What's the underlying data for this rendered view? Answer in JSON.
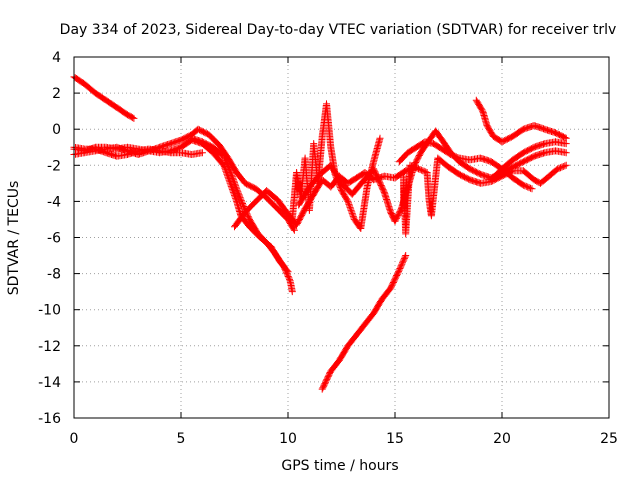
{
  "chart_data": {
    "type": "scatter",
    "title": "Day 334 of 2023, Sidereal Day-to-day VTEC variation (SDTVAR) for receiver trlv",
    "xlabel": "GPS time / hours",
    "ylabel": "SDTVAR / TECUs",
    "xlim": [
      0,
      25
    ],
    "ylim": [
      -16,
      4
    ],
    "xticks": [
      0,
      5,
      10,
      15,
      20,
      25
    ],
    "yticks": [
      4,
      2,
      0,
      -2,
      -4,
      -6,
      -8,
      -10,
      -12,
      -14,
      -16
    ],
    "xtick_labels": [
      "0",
      "5",
      "10",
      "15",
      "20",
      "25"
    ],
    "ytick_labels": [
      "4",
      "2",
      "0",
      "-2",
      "-4",
      "-6",
      "-8",
      "-10",
      "-12",
      "-14",
      "-16"
    ],
    "grid": true,
    "marker": "+",
    "color": "#ff0000",
    "series": [
      {
        "name": "arc-a",
        "points": [
          [
            0,
            2.9
          ],
          [
            0.5,
            2.5
          ],
          [
            1,
            2.0
          ],
          [
            1.5,
            1.6
          ],
          [
            2,
            1.2
          ],
          [
            2.5,
            0.8
          ],
          [
            2.8,
            0.6
          ]
        ]
      },
      {
        "name": "arc-b",
        "points": [
          [
            0,
            -1.0
          ],
          [
            0.5,
            -1.1
          ],
          [
            1,
            -1.1
          ],
          [
            1.5,
            -1.3
          ],
          [
            2,
            -1.5
          ],
          [
            2.5,
            -1.4
          ],
          [
            3,
            -1.2
          ],
          [
            3.5,
            -1.1
          ],
          [
            4,
            -1.2
          ],
          [
            4.5,
            -1.3
          ],
          [
            5,
            -1.3
          ],
          [
            5.5,
            -1.4
          ],
          [
            6,
            -1.3
          ]
        ]
      },
      {
        "name": "arc-c",
        "points": [
          [
            0,
            -1.1
          ],
          [
            0.5,
            -1.2
          ],
          [
            1,
            -1.0
          ],
          [
            1.5,
            -1.0
          ],
          [
            2,
            -1.1
          ],
          [
            2.5,
            -1.0
          ],
          [
            3,
            -1.1
          ],
          [
            3.5,
            -1.2
          ],
          [
            4,
            -1.0
          ],
          [
            4.5,
            -0.8
          ],
          [
            5,
            -0.6
          ],
          [
            5.5,
            -0.3
          ],
          [
            5.8,
            0.0
          ],
          [
            6.3,
            -0.3
          ],
          [
            6.8,
            -0.9
          ],
          [
            7.2,
            -1.6
          ],
          [
            7.6,
            -2.4
          ],
          [
            8,
            -3.0
          ],
          [
            8.5,
            -3.3
          ],
          [
            9,
            -3.8
          ],
          [
            9.5,
            -4.4
          ],
          [
            10,
            -5.0
          ],
          [
            10.3,
            -5.6
          ]
        ]
      },
      {
        "name": "arc-d",
        "points": [
          [
            0,
            -1.4
          ],
          [
            0.5,
            -1.3
          ],
          [
            1,
            -1.2
          ],
          [
            1.5,
            -1.1
          ],
          [
            2,
            -1.0
          ],
          [
            2.5,
            -1.2
          ],
          [
            3,
            -1.4
          ],
          [
            3.5,
            -1.2
          ],
          [
            4,
            -1.3
          ],
          [
            4.5,
            -1.2
          ],
          [
            5,
            -1.0
          ],
          [
            5.5,
            -0.6
          ],
          [
            6,
            -0.8
          ],
          [
            6.5,
            -1.3
          ],
          [
            7,
            -2.0
          ],
          [
            7.3,
            -3.0
          ],
          [
            7.6,
            -4.0
          ],
          [
            7.8,
            -4.8
          ],
          [
            8.2,
            -5.4
          ],
          [
            8.7,
            -6.0
          ],
          [
            9.2,
            -6.5
          ],
          [
            9.6,
            -7.3
          ],
          [
            10,
            -7.9
          ]
        ]
      },
      {
        "name": "arc-e",
        "points": [
          [
            5.5,
            -0.5
          ],
          [
            6,
            -0.7
          ],
          [
            6.5,
            -1.0
          ],
          [
            7,
            -1.5
          ],
          [
            7.3,
            -2.3
          ],
          [
            7.6,
            -3.3
          ],
          [
            7.9,
            -4.2
          ],
          [
            8.2,
            -5.0
          ],
          [
            8.6,
            -5.8
          ],
          [
            9,
            -6.3
          ],
          [
            9.4,
            -6.9
          ],
          [
            9.8,
            -7.6
          ],
          [
            10.1,
            -8.4
          ],
          [
            10.2,
            -9.0
          ]
        ]
      },
      {
        "name": "arc-f",
        "points": [
          [
            7.5,
            -5.4
          ],
          [
            8,
            -4.6
          ],
          [
            8.5,
            -4.0
          ],
          [
            9,
            -3.4
          ],
          [
            9.5,
            -3.9
          ],
          [
            10,
            -4.7
          ],
          [
            10.4,
            -5.3
          ],
          [
            10.8,
            -4.4
          ],
          [
            11.2,
            -3.6
          ],
          [
            11.6,
            -2.8
          ],
          [
            12,
            -3.2
          ],
          [
            12.4,
            -2.6
          ],
          [
            12.8,
            -3.0
          ],
          [
            13.2,
            -2.7
          ],
          [
            13.6,
            -2.4
          ],
          [
            14,
            -2.8
          ],
          [
            14.5,
            -2.6
          ],
          [
            15,
            -2.7
          ],
          [
            15.5,
            -2.3
          ],
          [
            16,
            -2.1
          ]
        ]
      },
      {
        "name": "arc-g",
        "points": [
          [
            10.2,
            -5.0
          ],
          [
            10.4,
            -2.4
          ],
          [
            10.6,
            -3.8
          ],
          [
            10.8,
            -1.6
          ],
          [
            11,
            -4.5
          ],
          [
            11.2,
            -0.8
          ],
          [
            11.4,
            -3.0
          ],
          [
            11.6,
            -0.4
          ],
          [
            11.8,
            1.4
          ],
          [
            12,
            -1.0
          ],
          [
            12.2,
            -2.5
          ],
          [
            12.5,
            -3.4
          ],
          [
            12.8,
            -4.0
          ],
          [
            13.1,
            -5.0
          ],
          [
            13.4,
            -5.5
          ],
          [
            13.7,
            -3.2
          ],
          [
            14,
            -1.8
          ],
          [
            14.3,
            -0.5
          ]
        ]
      },
      {
        "name": "arc-h",
        "points": [
          [
            10.5,
            -4.2
          ],
          [
            11,
            -3.2
          ],
          [
            11.5,
            -2.5
          ],
          [
            12,
            -2.0
          ],
          [
            12.5,
            -3.0
          ],
          [
            13,
            -3.6
          ],
          [
            13.5,
            -2.9
          ],
          [
            14,
            -2.2
          ],
          [
            14.5,
            -3.5
          ],
          [
            14.8,
            -4.6
          ],
          [
            15,
            -5.1
          ],
          [
            15.3,
            -4.4
          ],
          [
            15.6,
            -3.2
          ],
          [
            15.9,
            -2.0
          ],
          [
            16.2,
            -1.3
          ],
          [
            16.6,
            -0.6
          ],
          [
            16.9,
            -0.1
          ],
          [
            17.2,
            -0.6
          ],
          [
            17.6,
            -1.3
          ],
          [
            18,
            -1.8
          ],
          [
            18.5,
            -2.2
          ],
          [
            19,
            -2.5
          ],
          [
            19.5,
            -2.7
          ],
          [
            20,
            -2.4
          ],
          [
            20.5,
            -2.1
          ],
          [
            21,
            -1.8
          ],
          [
            21.5,
            -1.5
          ],
          [
            22,
            -1.3
          ],
          [
            22.5,
            -1.2
          ],
          [
            23,
            -1.3
          ]
        ]
      },
      {
        "name": "arc-i",
        "points": [
          [
            11.6,
            -14.4
          ],
          [
            12,
            -13.4
          ],
          [
            12.4,
            -12.8
          ],
          [
            12.8,
            -12.0
          ],
          [
            13.2,
            -11.4
          ],
          [
            13.6,
            -10.8
          ],
          [
            14,
            -10.2
          ],
          [
            14.4,
            -9.4
          ],
          [
            14.8,
            -8.8
          ],
          [
            15.2,
            -7.8
          ],
          [
            15.5,
            -7.0
          ]
        ]
      },
      {
        "name": "arc-j",
        "points": [
          [
            15.2,
            -1.8
          ],
          [
            15.6,
            -1.3
          ],
          [
            16,
            -1.0
          ],
          [
            16.4,
            -0.7
          ],
          [
            16.8,
            -0.8
          ],
          [
            17.2,
            -1.1
          ],
          [
            17.6,
            -1.4
          ],
          [
            18,
            -1.6
          ],
          [
            18.5,
            -1.7
          ],
          [
            19,
            -1.6
          ],
          [
            19.5,
            -1.8
          ],
          [
            20,
            -2.2
          ],
          [
            20.5,
            -2.7
          ],
          [
            21,
            -3.1
          ],
          [
            21.4,
            -3.3
          ]
        ]
      },
      {
        "name": "arc-k",
        "points": [
          [
            15.4,
            -4.2
          ],
          [
            15.4,
            -2.6
          ],
          [
            15.5,
            -5.8
          ],
          [
            15.7,
            -2.0
          ],
          [
            16.5,
            -2.4
          ],
          [
            16.6,
            -4.0
          ],
          [
            16.7,
            -4.8
          ],
          [
            17,
            -1.6
          ],
          [
            17.5,
            -2.1
          ],
          [
            18,
            -2.5
          ],
          [
            18.5,
            -2.8
          ],
          [
            19,
            -3.0
          ],
          [
            19.5,
            -2.9
          ],
          [
            20,
            -2.6
          ],
          [
            20.5,
            -2.3
          ],
          [
            21,
            -2.3
          ],
          [
            21.5,
            -2.8
          ],
          [
            21.8,
            -3.0
          ],
          [
            22.2,
            -2.6
          ],
          [
            22.6,
            -2.2
          ],
          [
            23,
            -2.0
          ]
        ]
      },
      {
        "name": "arc-l",
        "points": [
          [
            18.8,
            1.6
          ],
          [
            19.1,
            1.0
          ],
          [
            19.3,
            0.2
          ],
          [
            19.6,
            -0.4
          ],
          [
            20,
            -0.7
          ],
          [
            20.5,
            -0.4
          ],
          [
            21,
            0.0
          ],
          [
            21.5,
            0.2
          ],
          [
            22,
            0.0
          ],
          [
            22.5,
            -0.2
          ],
          [
            23,
            -0.5
          ]
        ]
      },
      {
        "name": "arc-m",
        "points": [
          [
            19.5,
            -2.8
          ],
          [
            20,
            -2.2
          ],
          [
            20.5,
            -1.7
          ],
          [
            21,
            -1.3
          ],
          [
            21.5,
            -1.0
          ],
          [
            22,
            -0.8
          ],
          [
            22.5,
            -0.7
          ],
          [
            23,
            -0.8
          ]
        ]
      }
    ]
  }
}
